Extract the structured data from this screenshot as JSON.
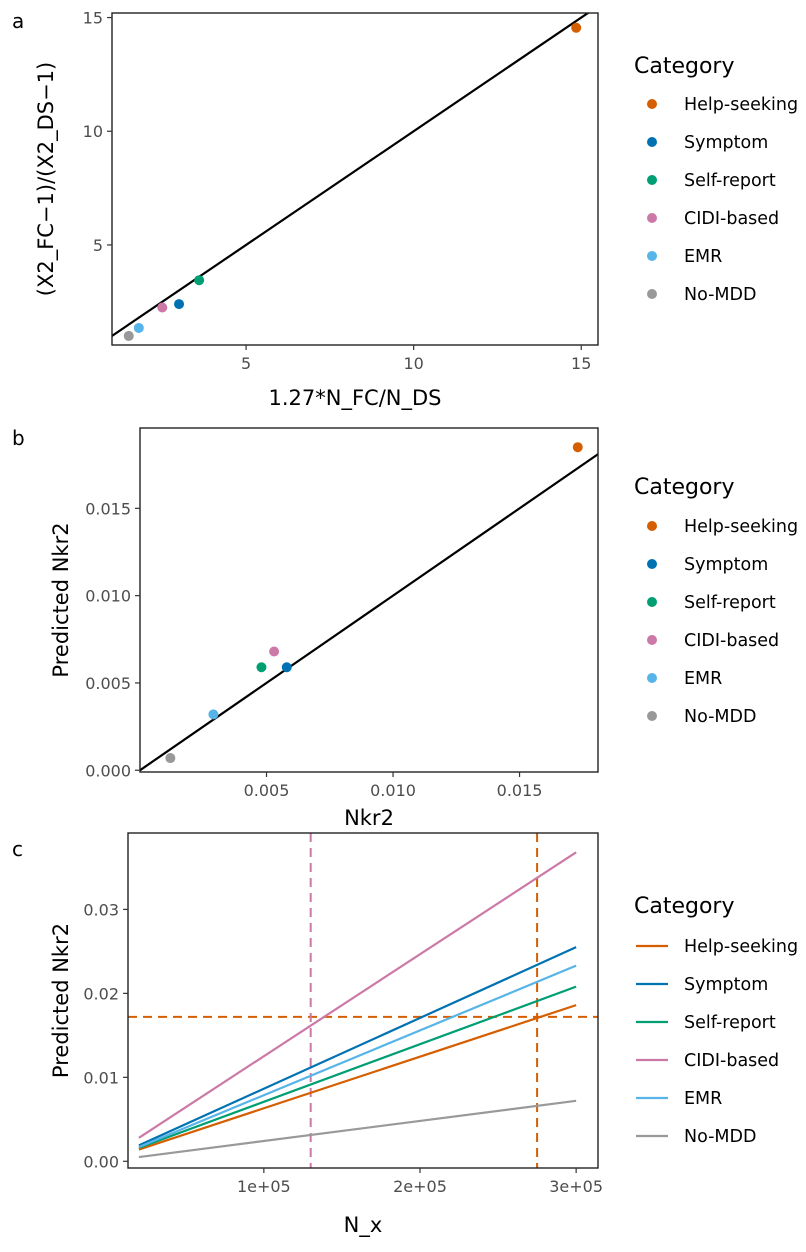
{
  "colors": {
    "Help-seeking": "#D55E00",
    "Symptom": "#0072B2",
    "Self-report": "#009E73",
    "CIDI-based": "#CC79A7",
    "EMR": "#56B4E9",
    "No-MDD": "#999999"
  },
  "chart_data": [
    {
      "panel": "a",
      "type": "scatter",
      "xlabel": "1.27*N_FC/N_DS",
      "ylabel": "(X2_FC−1)/(X2_DS−1)",
      "xlim": [
        1.0,
        15.5
      ],
      "ylim": [
        0.6,
        15.2
      ],
      "xticks": [
        5,
        10,
        15
      ],
      "yticks": [
        5,
        10,
        15
      ],
      "grid": false,
      "reference_line": {
        "slope": 1,
        "intercept": 0
      },
      "legend_title": "Category",
      "legend_position": "right",
      "series": [
        {
          "name": "Help-seeking",
          "x": 14.85,
          "y": 14.55
        },
        {
          "name": "Symptom",
          "x": 3.0,
          "y": 2.4
        },
        {
          "name": "Self-report",
          "x": 3.6,
          "y": 3.45
        },
        {
          "name": "CIDI-based",
          "x": 2.5,
          "y": 2.25
        },
        {
          "name": "EMR",
          "x": 1.8,
          "y": 1.35
        },
        {
          "name": "No-MDD",
          "x": 1.5,
          "y": 1.0
        }
      ]
    },
    {
      "panel": "b",
      "type": "scatter",
      "xlabel": "Nkr2",
      "ylabel": "Predicted Nkr2",
      "xlim": [
        0.0,
        0.0181
      ],
      "ylim": [
        -0.0001,
        0.0196
      ],
      "xticks": [
        0.005,
        0.01,
        0.015
      ],
      "yticks": [
        0.0,
        0.005,
        0.01,
        0.015
      ],
      "tick_format": 3,
      "grid": false,
      "reference_line": {
        "slope": 1,
        "intercept": 0
      },
      "legend_title": "Category",
      "legend_position": "right",
      "series": [
        {
          "name": "Help-seeking",
          "x": 0.0173,
          "y": 0.0185
        },
        {
          "name": "Symptom",
          "x": 0.0058,
          "y": 0.0059
        },
        {
          "name": "Self-report",
          "x": 0.0048,
          "y": 0.0059
        },
        {
          "name": "CIDI-based",
          "x": 0.0053,
          "y": 0.0068
        },
        {
          "name": "EMR",
          "x": 0.0029,
          "y": 0.0032
        },
        {
          "name": "No-MDD",
          "x": 0.0012,
          "y": 0.0007
        }
      ]
    },
    {
      "panel": "c",
      "type": "line",
      "xlabel": "N_x",
      "ylabel": "Predicted Nkr2",
      "xlim": [
        13000,
        314000
      ],
      "ylim": [
        -0.0008,
        0.0391
      ],
      "xticks": [
        100000,
        200000,
        300000
      ],
      "xtick_labels": [
        "1e+05",
        "2e+05",
        "3e+05"
      ],
      "yticks": [
        0.0,
        0.01,
        0.02,
        0.03
      ],
      "tick_format": 2,
      "grid": false,
      "legend_title": "Category",
      "legend_position": "right",
      "hline": {
        "y": 0.0172,
        "color": "Help-seeking"
      },
      "vlines": [
        {
          "x": 130000,
          "color": "CIDI-based"
        },
        {
          "x": 275000,
          "color": "Help-seeking"
        }
      ],
      "x": [
        20000,
        300000
      ],
      "series": [
        {
          "name": "Help-seeking",
          "values": [
            0.0014,
            0.0186
          ]
        },
        {
          "name": "Symptom",
          "values": [
            0.0019,
            0.0255
          ]
        },
        {
          "name": "Self-report",
          "values": [
            0.0016,
            0.0208
          ]
        },
        {
          "name": "CIDI-based",
          "values": [
            0.0028,
            0.0368
          ]
        },
        {
          "name": "EMR",
          "values": [
            0.0017,
            0.0233
          ]
        },
        {
          "name": "No-MDD",
          "values": [
            0.0005,
            0.0072
          ]
        }
      ]
    }
  ]
}
